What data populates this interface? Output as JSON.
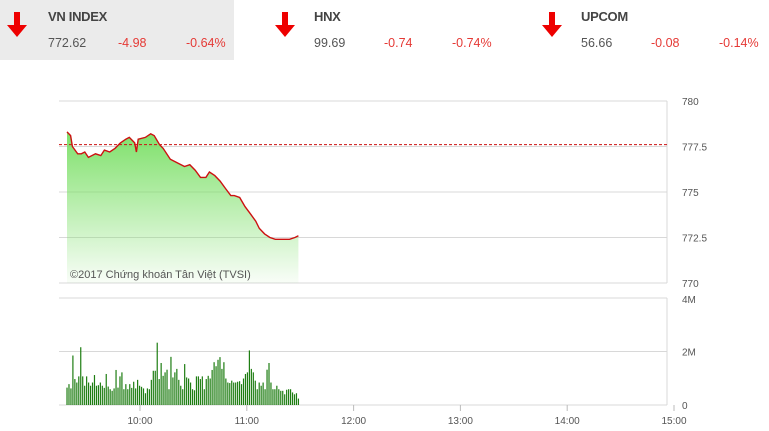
{
  "tickers": [
    {
      "name": "VN INDEX",
      "value": "772.62",
      "change": "-4.98",
      "percent": "-0.64%",
      "direction": "down"
    },
    {
      "name": "HNX",
      "value": "99.69",
      "change": "-0.74",
      "percent": "-0.74%",
      "direction": "down"
    },
    {
      "name": "UPCOM",
      "value": "56.66",
      "change": "-0.08",
      "percent": "-0.14%",
      "direction": "down"
    }
  ],
  "colors": {
    "down": "#e02020",
    "line": "#cc1111",
    "fill": "#7ee06a",
    "volume": "#1e7d12",
    "reference": "#cc1111"
  },
  "chart_data": [
    {
      "type": "area",
      "title": "",
      "watermark": "©2017 Chứng khoán Tân Việt (TVSI)",
      "ylim": [
        770,
        780
      ],
      "yticks": [
        "780",
        "777.5",
        "775",
        "772.5",
        "770"
      ],
      "reference": 777.6,
      "grid": true,
      "x": [
        "09:19",
        "09:21",
        "09:22",
        "09:25",
        "09:27",
        "09:29",
        "09:31",
        "09:35",
        "09:38",
        "09:40",
        "09:43",
        "09:46",
        "09:49",
        "09:52",
        "09:54",
        "09:57",
        "09:58",
        "09:59",
        "10:03",
        "10:06",
        "10:08",
        "10:11",
        "10:13",
        "10:17",
        "10:21",
        "10:25",
        "10:28",
        "10:31",
        "10:34",
        "10:37",
        "10:39",
        "10:42",
        "10:45",
        "10:48",
        "10:51",
        "10:53",
        "10:56",
        "10:59",
        "11:02",
        "11:05",
        "11:07",
        "11:10",
        "11:13",
        "11:16",
        "11:19",
        "11:21",
        "11:24",
        "11:27",
        "11:29"
      ],
      "y": [
        778.3,
        778.1,
        777.5,
        777.1,
        777.1,
        777.2,
        776.9,
        777.1,
        777.0,
        777.3,
        777.2,
        777.4,
        777.7,
        777.9,
        778.0,
        777.7,
        777.2,
        777.9,
        778.0,
        778.2,
        778.1,
        777.6,
        777.4,
        776.8,
        776.6,
        776.4,
        776.5,
        776.2,
        775.8,
        775.8,
        776.1,
        775.9,
        775.6,
        775.2,
        774.8,
        774.8,
        774.7,
        774.2,
        773.8,
        773.4,
        773.0,
        772.7,
        772.5,
        772.4,
        772.4,
        772.4,
        772.4,
        772.5,
        772.6
      ]
    },
    {
      "type": "bar",
      "ylim": [
        0,
        4
      ],
      "yticks": [
        "4M",
        "2M",
        "0"
      ],
      "xticks": [
        "10:00",
        "11:00",
        "12:00",
        "13:00",
        "14:00",
        "15:00"
      ],
      "x_range": [
        "09:19",
        "11:29"
      ],
      "unit": "M",
      "values": [
        0.65,
        0.78,
        0.62,
        1.85,
        0.97,
        0.84,
        1.07,
        2.16,
        1.07,
        0.72,
        1.07,
        0.84,
        0.72,
        0.84,
        1.12,
        0.72,
        0.74,
        0.84,
        0.72,
        0.64,
        1.16,
        0.69,
        0.59,
        0.53,
        0.62,
        1.31,
        0.65,
        1.07,
        1.22,
        0.59,
        0.78,
        0.59,
        0.78,
        0.64,
        0.87,
        0.62,
        0.94,
        0.72,
        0.68,
        0.62,
        0.44,
        0.62,
        0.59,
        0.94,
        1.28,
        1.28,
        2.33,
        0.97,
        1.57,
        1.09,
        1.22,
        1.32,
        0.59,
        1.8,
        1.03,
        1.22,
        1.35,
        0.94,
        0.72,
        0.59,
        1.53,
        1.03,
        0.99,
        0.84,
        0.59,
        0.55,
        1.07,
        1.07,
        0.97,
        1.07,
        0.59,
        0.97,
        1.09,
        0.99,
        1.31,
        1.6,
        1.45,
        1.69,
        1.79,
        1.35,
        1.6,
        0.99,
        0.84,
        0.82,
        0.91,
        0.84,
        0.84,
        0.87,
        0.89,
        0.78,
        0.99,
        1.16,
        1.22,
        2.04,
        1.35,
        1.22,
        0.91,
        0.59,
        0.84,
        0.72,
        0.84,
        0.59,
        1.32,
        1.57,
        0.84,
        0.59,
        0.59,
        0.72,
        0.59,
        0.53,
        0.53,
        0.4,
        0.57,
        0.59,
        0.59,
        0.47,
        0.4,
        0.44,
        0.24
      ]
    }
  ]
}
